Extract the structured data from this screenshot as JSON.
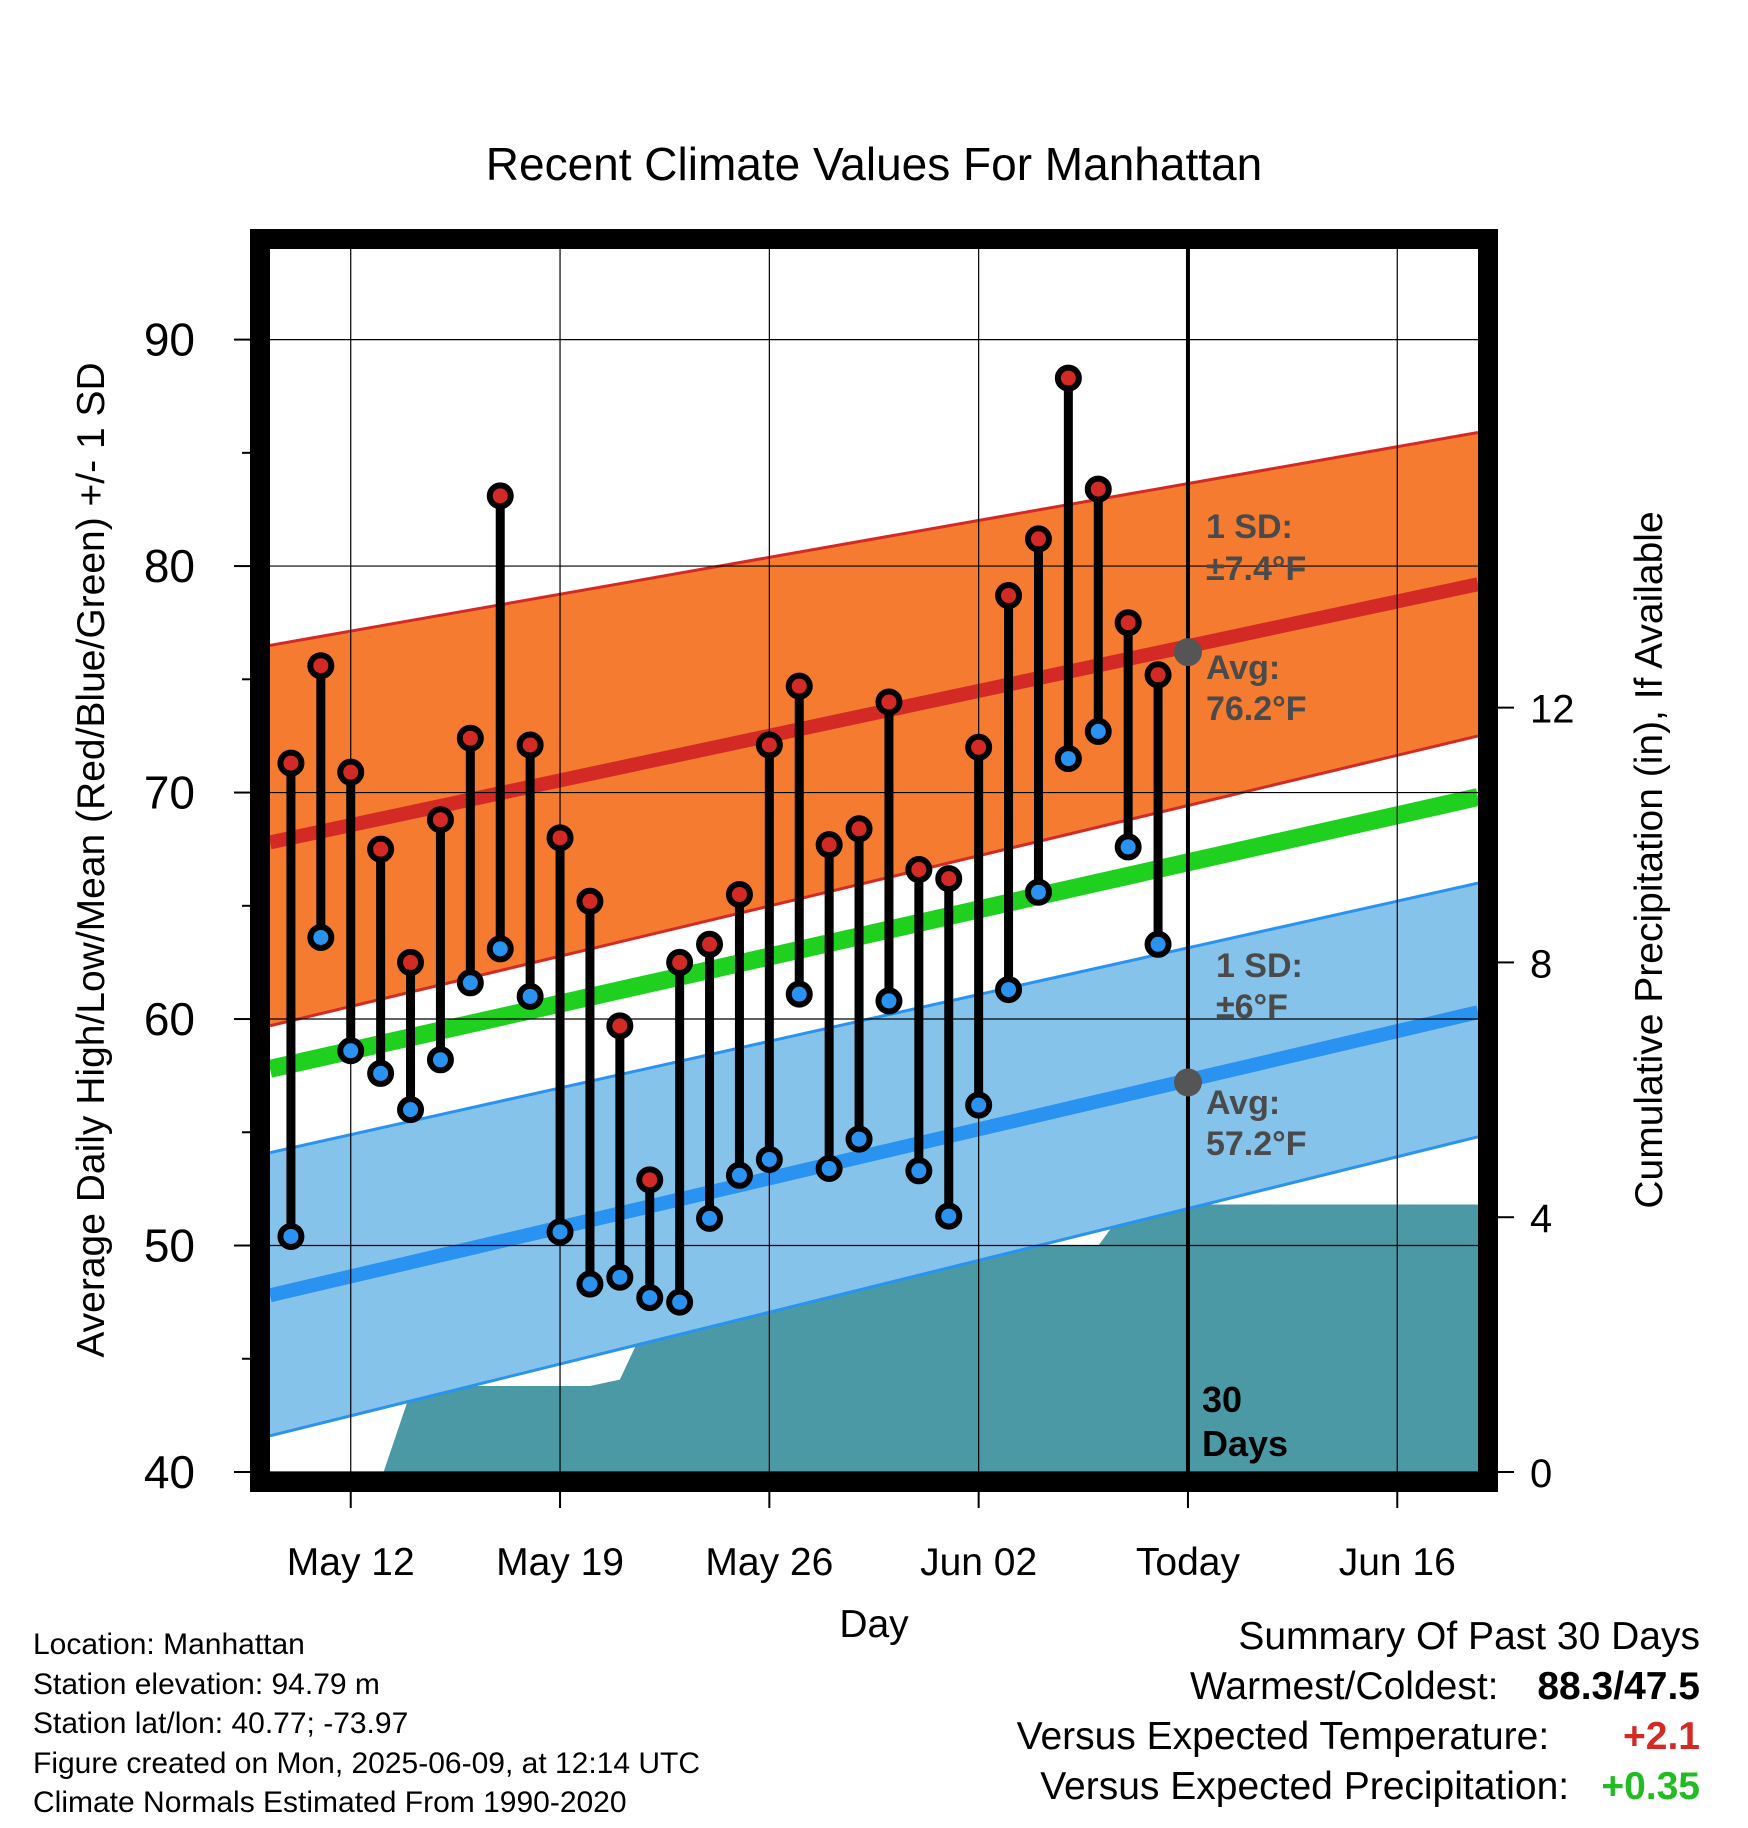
{
  "chart_data": {
    "type": "line",
    "title": "Recent Climate Values For Manhattan",
    "xlabel": "Day",
    "ylabel": "Average Daily High/Low/Mean (Red/Blue/Green) +/- 1 SD",
    "y2label": "Cumulative Precipitation (in), If Available",
    "ylim": [
      40,
      94
    ],
    "y2lim": [
      0,
      19.2
    ],
    "y_ticks": [
      "40",
      "50",
      "60",
      "70",
      "80",
      "90"
    ],
    "y2_ticks": [
      "0",
      "4",
      "8",
      "12"
    ],
    "x_ticks": [
      "May 12",
      "May 19",
      "May 26",
      "Jun 02",
      "Today",
      "Jun 16"
    ],
    "x_tick_days": [
      12,
      19,
      26,
      33,
      40,
      47
    ],
    "xlim": [
      9.3,
      49.7
    ],
    "today_day": 40,
    "today_label": [
      "30",
      "Days"
    ],
    "grid": true,
    "colors": {
      "high": "#d42a26",
      "low": "#2a92f0",
      "mean": "#1fd01f",
      "high_band": "#f47b30",
      "low_band": "#86c3ea",
      "precip": "#4a99a4"
    },
    "high_normal": {
      "x": [
        9.3,
        49.7
      ],
      "mean": [
        67.8,
        79.2
      ],
      "sd_upper": [
        76.5,
        85.9
      ],
      "sd_lower": [
        59.7,
        72.5
      ]
    },
    "low_normal": {
      "x": [
        9.3,
        49.7
      ],
      "mean": [
        47.8,
        60.3
      ],
      "sd_upper": [
        54.1,
        66.0
      ],
      "sd_lower": [
        41.6,
        54.8
      ]
    },
    "mean_normal": {
      "x": [
        9.3,
        49.7
      ],
      "y": [
        57.8,
        69.8
      ]
    },
    "annotations": {
      "high_sd": [
        "1 SD:",
        "±7.4°F"
      ],
      "high_avg": [
        "Avg:",
        "76.2°F"
      ],
      "low_sd": [
        "1 SD:",
        "±6°F"
      ],
      "low_avg": [
        "Avg:",
        "57.2°F"
      ],
      "high_avg_value": 76.2,
      "low_avg_value": 57.2
    },
    "series": [
      {
        "name": "High",
        "x": [
          10,
          11,
          12,
          13,
          14,
          15,
          16,
          17,
          18,
          19,
          20,
          21,
          22,
          23,
          24,
          25,
          26,
          27,
          28,
          29,
          30,
          31,
          32,
          33,
          34,
          35,
          36,
          37,
          38,
          39
        ],
        "values": [
          71.3,
          75.6,
          70.9,
          67.5,
          62.5,
          68.8,
          72.4,
          83.1,
          72.1,
          68.0,
          65.2,
          59.7,
          52.9,
          62.5,
          63.3,
          65.5,
          72.1,
          74.7,
          67.7,
          68.4,
          74.0,
          66.6,
          66.2,
          72.0,
          78.7,
          81.2,
          88.3,
          83.4,
          77.5,
          75.2
        ]
      },
      {
        "name": "Low",
        "x": [
          10,
          11,
          12,
          13,
          14,
          15,
          16,
          17,
          18,
          19,
          20,
          21,
          22,
          23,
          24,
          25,
          26,
          27,
          28,
          29,
          30,
          31,
          32,
          33,
          34,
          35,
          36,
          37,
          38,
          39
        ],
        "values": [
          50.4,
          63.6,
          58.6,
          57.6,
          56.0,
          58.2,
          61.6,
          63.1,
          61.0,
          50.6,
          48.3,
          48.6,
          47.7,
          47.5,
          51.2,
          53.1,
          53.8,
          61.1,
          53.4,
          54.7,
          60.8,
          53.3,
          51.3,
          56.2,
          61.3,
          65.6,
          71.5,
          72.7,
          67.6,
          63.3
        ]
      },
      {
        "name": "Cumulative Precipitation",
        "type": "area",
        "x": [
          9.3,
          13.1,
          14.0,
          15.0,
          16.0,
          17.0,
          18.0,
          19.0,
          20.0,
          21.0,
          22.0,
          23.0,
          24.0,
          25.0,
          26.0,
          27.0,
          28.0,
          29.0,
          30.0,
          31.0,
          32.0,
          33.0,
          34.0,
          35.0,
          36.0,
          37.0,
          38.0,
          39.0,
          40.0,
          49.7
        ],
        "values": [
          0,
          0,
          1.25,
          1.25,
          1.35,
          1.35,
          1.35,
          1.35,
          1.35,
          1.45,
          2.45,
          2.6,
          2.6,
          2.6,
          2.6,
          2.6,
          3.0,
          3.1,
          3.1,
          3.55,
          3.55,
          3.55,
          3.55,
          3.55,
          3.55,
          3.55,
          4.2,
          4.2,
          4.2,
          4.2
        ]
      }
    ]
  },
  "info": {
    "location": "Location: Manhattan",
    "elevation": "Station elevation: 94.79 m",
    "latlon": "Station lat/lon: 40.77; -73.97",
    "created": "Figure created on Mon, 2025-06-09, at 12:14 UTC",
    "normals": "Climate Normals Estimated From 1990-2020"
  },
  "summary": {
    "heading": "Summary Of Past 30 Days",
    "warmest_label": "Warmest/Coldest:",
    "warmest_value": "88.3/47.5",
    "temp_label": "Versus Expected Temperature:",
    "temp_value": "+2.1",
    "temp_color": "#d42a26",
    "precip_label": "Versus Expected Precipitation:",
    "precip_value": "+0.35",
    "precip_color": "#22bb22"
  }
}
